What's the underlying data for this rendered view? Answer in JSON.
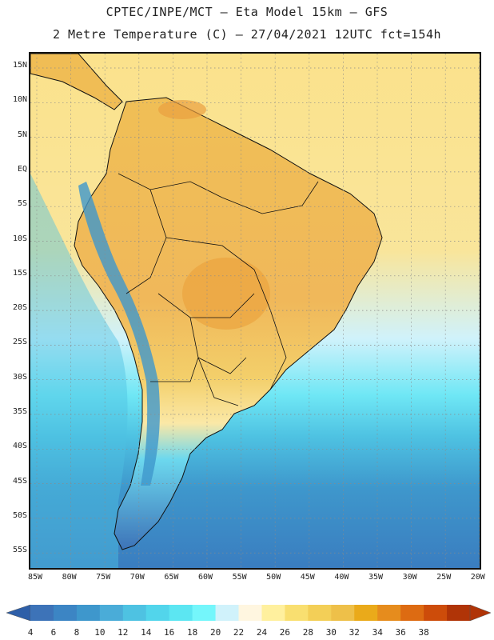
{
  "title": {
    "line1": "CPTEC/INPE/MCT –  Eta Model 15km – GFS",
    "line2": "2 Metre Temperature (C) – 27/04/2021 12UTC fct=154h"
  },
  "map": {
    "lat_labels": [
      "15N",
      "10N",
      "5N",
      "EQ",
      "5S",
      "10S",
      "15S",
      "20S",
      "25S",
      "30S",
      "35S",
      "40S",
      "45S",
      "50S",
      "55S"
    ],
    "lon_labels": [
      "85W",
      "80W",
      "75W",
      "70W",
      "65W",
      "60W",
      "55W",
      "50W",
      "45W",
      "40W",
      "35W",
      "30W",
      "25W",
      "20W"
    ]
  },
  "colorbar": {
    "labels": [
      "4",
      "6",
      "8",
      "10",
      "12",
      "14",
      "16",
      "18",
      "20",
      "22",
      "24",
      "26",
      "28",
      "30",
      "32",
      "34",
      "36",
      "38"
    ],
    "colors": [
      "#3d73b8",
      "#3c85c4",
      "#3e97cc",
      "#4aacd8",
      "#4ec2e2",
      "#52d5eb",
      "#5ce6f2",
      "#74f6fb",
      "#d0f2fb",
      "#fff6e0",
      "#fff09e",
      "#f9df70",
      "#f3cf57",
      "#eec049",
      "#eaaa1a",
      "#e68c1d",
      "#dd6b12",
      "#cd4c0a",
      "#b03407"
    ],
    "low_arrow_color": "#2e5fa8",
    "high_arrow_color": "#b03407"
  },
  "colors": {
    "land_warm": "#f5c863",
    "land_hot": "#eea94a",
    "ocean_tropical": "#fbe28c",
    "ocean_cool": "#4ec6e5",
    "ocean_cold": "#3b86c5",
    "border": "#111111"
  }
}
